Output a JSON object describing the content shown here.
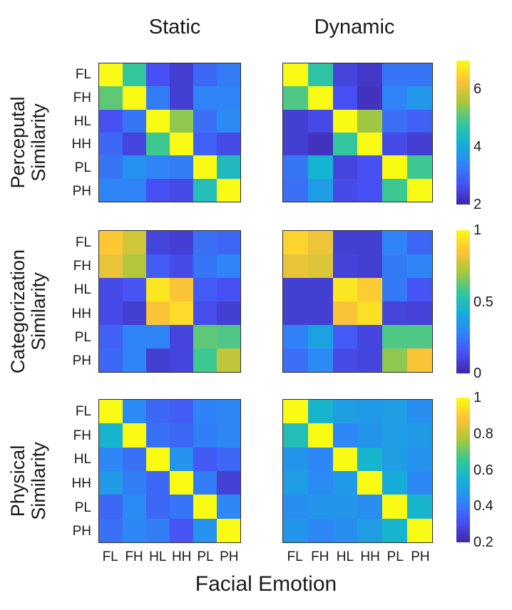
{
  "figure": {
    "column_titles": [
      "Static",
      "Dynamic"
    ],
    "xlabel": "Facial Emotion",
    "row_labels": [
      [
        "Perceputal",
        "Similarity"
      ],
      [
        "Categorization",
        "Similarity"
      ],
      [
        "Physical",
        "Similarity"
      ]
    ],
    "emotions": [
      "FL",
      "FH",
      "HL",
      "HH",
      "PL",
      "PH"
    ],
    "colormap": "parula",
    "text_color": "#1a1a1a",
    "background_color": "#ffffff"
  },
  "chart_data": [
    {
      "type": "heatmap",
      "title": "Perceputal Similarity",
      "categories": [
        "FL",
        "FH",
        "HL",
        "HH",
        "PL",
        "PH"
      ],
      "vmin": 2,
      "vmax": 7,
      "colorbar_ticks": [
        2,
        4,
        6
      ],
      "series": [
        {
          "name": "Static",
          "values": [
            [
              7.0,
              4.8,
              2.7,
              2.4,
              3.0,
              3.3
            ],
            [
              5.1,
              7.0,
              3.3,
              2.4,
              3.4,
              3.4
            ],
            [
              2.7,
              3.2,
              7.0,
              5.4,
              3.1,
              3.5
            ],
            [
              3.0,
              2.5,
              4.9,
              7.0,
              2.9,
              2.6
            ],
            [
              3.2,
              3.6,
              3.4,
              3.3,
              7.0,
              4.4
            ],
            [
              3.4,
              3.4,
              2.7,
              2.6,
              4.5,
              7.0
            ]
          ]
        },
        {
          "name": "Dynamic",
          "values": [
            [
              7.0,
              4.7,
              2.5,
              2.3,
              3.2,
              3.2
            ],
            [
              5.0,
              7.0,
              2.7,
              2.2,
              3.4,
              3.7
            ],
            [
              2.4,
              2.6,
              7.0,
              5.5,
              3.1,
              2.9
            ],
            [
              2.4,
              2.2,
              4.8,
              7.0,
              2.6,
              2.4
            ],
            [
              3.2,
              4.2,
              2.5,
              2.7,
              7.0,
              4.9
            ],
            [
              3.1,
              3.8,
              2.6,
              2.7,
              4.9,
              7.0
            ]
          ]
        }
      ]
    },
    {
      "type": "heatmap",
      "title": "Categorization Similarity",
      "categories": [
        "FL",
        "FH",
        "HL",
        "HH",
        "PL",
        "PH"
      ],
      "vmin": 0,
      "vmax": 1,
      "colorbar_ticks": [
        0,
        0.5,
        1
      ],
      "series": [
        {
          "name": "Static",
          "values": [
            [
              0.87,
              0.78,
              0.1,
              0.08,
              0.22,
              0.2
            ],
            [
              0.82,
              0.73,
              0.17,
              0.12,
              0.24,
              0.28
            ],
            [
              0.12,
              0.15,
              0.95,
              0.85,
              0.17,
              0.14
            ],
            [
              0.12,
              0.08,
              0.85,
              0.92,
              0.13,
              0.08
            ],
            [
              0.18,
              0.28,
              0.28,
              0.1,
              0.62,
              0.6
            ],
            [
              0.2,
              0.28,
              0.08,
              0.1,
              0.58,
              0.75
            ]
          ]
        },
        {
          "name": "Dynamic",
          "values": [
            [
              0.9,
              0.83,
              0.08,
              0.08,
              0.28,
              0.2
            ],
            [
              0.82,
              0.8,
              0.09,
              0.08,
              0.25,
              0.28
            ],
            [
              0.08,
              0.08,
              0.95,
              0.88,
              0.25,
              0.15
            ],
            [
              0.08,
              0.08,
              0.85,
              0.93,
              0.1,
              0.09
            ],
            [
              0.27,
              0.38,
              0.17,
              0.1,
              0.6,
              0.6
            ],
            [
              0.22,
              0.3,
              0.12,
              0.1,
              0.68,
              0.85
            ]
          ]
        }
      ]
    },
    {
      "type": "heatmap",
      "title": "Physical Similarity",
      "categories": [
        "FL",
        "FH",
        "HL",
        "HH",
        "PL",
        "PH"
      ],
      "vmin": 0.2,
      "vmax": 1,
      "colorbar_ticks": [
        0.2,
        0.4,
        0.6,
        0.8,
        1
      ],
      "series": [
        {
          "name": "Static",
          "values": [
            [
              1.0,
              0.44,
              0.36,
              0.34,
              0.42,
              0.43
            ],
            [
              0.56,
              1.0,
              0.38,
              0.36,
              0.41,
              0.43
            ],
            [
              0.43,
              0.38,
              1.0,
              0.46,
              0.33,
              0.36
            ],
            [
              0.48,
              0.41,
              0.36,
              1.0,
              0.41,
              0.27
            ],
            [
              0.36,
              0.44,
              0.36,
              0.39,
              1.0,
              0.43
            ],
            [
              0.38,
              0.43,
              0.41,
              0.32,
              0.46,
              1.0
            ]
          ]
        },
        {
          "name": "Dynamic",
          "values": [
            [
              1.0,
              0.56,
              0.49,
              0.48,
              0.49,
              0.45
            ],
            [
              0.6,
              1.0,
              0.43,
              0.47,
              0.49,
              0.48
            ],
            [
              0.47,
              0.43,
              1.0,
              0.56,
              0.49,
              0.46
            ],
            [
              0.49,
              0.44,
              0.48,
              1.0,
              0.53,
              0.43
            ],
            [
              0.45,
              0.47,
              0.47,
              0.45,
              1.0,
              0.56
            ],
            [
              0.47,
              0.43,
              0.45,
              0.49,
              0.56,
              1.0
            ]
          ]
        }
      ]
    }
  ]
}
